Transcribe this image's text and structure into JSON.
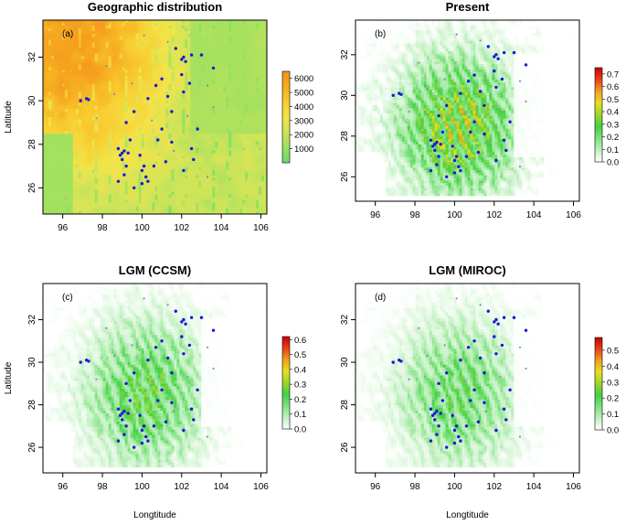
{
  "panels": [
    {
      "title": "Geographic distribution",
      "label": "(a)",
      "kind": "elevation",
      "legend": {
        "min": 0,
        "max": 6500,
        "ticks": [
          "1000",
          "2000",
          "3000",
          "4000",
          "5000",
          "6000"
        ],
        "tick_values": [
          1000,
          2000,
          3000,
          4000,
          5000,
          6000
        ],
        "colors": [
          "#66dd66",
          "#99e060",
          "#cce45a",
          "#f2e44a",
          "#f8cc30",
          "#f6aa20",
          "#f39020"
        ]
      }
    },
    {
      "title": "Present",
      "label": "(b)",
      "kind": "suitability",
      "legend": {
        "min": 0,
        "max": 0.75,
        "ticks": [
          "0.0",
          "0.1",
          "0.2",
          "0.3",
          "0.4",
          "0.5",
          "0.6",
          "0.7"
        ],
        "tick_values": [
          0,
          0.1,
          0.2,
          0.3,
          0.4,
          0.5,
          0.6,
          0.7
        ],
        "colors": [
          "#ffffff",
          "#bff0bf",
          "#7de27d",
          "#44d044",
          "#9ed42c",
          "#e8dd22",
          "#f0a020",
          "#e84018",
          "#cc0000"
        ]
      }
    },
    {
      "title": "LGM (CCSM)",
      "label": "(c)",
      "kind": "suitability",
      "legend": {
        "min": 0,
        "max": 0.62,
        "ticks": [
          "0.0",
          "0.1",
          "0.2",
          "0.3",
          "0.4",
          "0.5",
          "0.6"
        ],
        "tick_values": [
          0,
          0.1,
          0.2,
          0.3,
          0.4,
          0.5,
          0.6
        ],
        "colors": [
          "#ffffff",
          "#bff0bf",
          "#7de27d",
          "#44d044",
          "#9ed42c",
          "#e8dd22",
          "#f0a020",
          "#e84018",
          "#cc0000"
        ]
      }
    },
    {
      "title": "LGM (MIROC)",
      "label": "(d)",
      "kind": "suitability",
      "legend": {
        "min": 0,
        "max": 0.58,
        "ticks": [
          "0.0",
          "0.1",
          "0.2",
          "0.3",
          "0.4",
          "0.5"
        ],
        "tick_values": [
          0,
          0.1,
          0.2,
          0.3,
          0.4,
          0.5
        ],
        "colors": [
          "#ffffff",
          "#bff0bf",
          "#7de27d",
          "#44d044",
          "#9ed42c",
          "#e8dd22",
          "#f0a020",
          "#e84018",
          "#cc0000"
        ]
      }
    }
  ],
  "axes": {
    "xlabel": "Longtitude",
    "ylabel": "Latitude",
    "xlim": [
      95,
      106.3
    ],
    "ylim": [
      24.8,
      33.7
    ],
    "xticks": [
      96,
      98,
      100,
      102,
      104,
      106
    ],
    "yticks": [
      26,
      28,
      30,
      32
    ]
  },
  "occurrence_points": [
    [
      96.9,
      30.0
    ],
    [
      97.2,
      30.1
    ],
    [
      97.3,
      30.05
    ],
    [
      98.8,
      27.8
    ],
    [
      98.9,
      27.5
    ],
    [
      99.0,
      27.6
    ],
    [
      99.1,
      27.7
    ],
    [
      99.3,
      27.6
    ],
    [
      99.0,
      27.3
    ],
    [
      99.2,
      27.0
    ],
    [
      98.8,
      26.3
    ],
    [
      99.1,
      26.6
    ],
    [
      100.0,
      26.8
    ],
    [
      100.1,
      27.0
    ],
    [
      100.2,
      26.5
    ],
    [
      100.0,
      26.2
    ],
    [
      100.3,
      26.3
    ],
    [
      99.9,
      27.5
    ],
    [
      99.4,
      28.2
    ],
    [
      99.2,
      29.0
    ],
    [
      99.6,
      29.5
    ],
    [
      100.3,
      30.1
    ],
    [
      100.7,
      30.7
    ],
    [
      101.0,
      31.0
    ],
    [
      101.3,
      30.2
    ],
    [
      101.5,
      29.5
    ],
    [
      101.0,
      28.7
    ],
    [
      101.2,
      27.2
    ],
    [
      100.6,
      27.0
    ],
    [
      102.0,
      31.9
    ],
    [
      102.1,
      32.0
    ],
    [
      102.2,
      31.8
    ],
    [
      102.5,
      32.1
    ],
    [
      102.0,
      31.2
    ],
    [
      102.4,
      30.8
    ],
    [
      102.1,
      30.4
    ],
    [
      103.0,
      32.1
    ],
    [
      103.6,
      31.5
    ],
    [
      102.8,
      28.7
    ],
    [
      102.5,
      27.8
    ],
    [
      102.6,
      27.3
    ],
    [
      102.1,
      26.8
    ],
    [
      99.6,
      26.0
    ],
    [
      101.7,
      32.4
    ],
    [
      101.5,
      28.1
    ],
    [
      100.8,
      28.2
    ]
  ],
  "faint_points": [
    [
      98.2,
      31.6
    ],
    [
      99.5,
      30.8
    ],
    [
      101.3,
      32.7
    ],
    [
      102.3,
      29.3
    ],
    [
      103.3,
      30.7
    ],
    [
      103.6,
      29.7
    ],
    [
      98.6,
      30.3
    ],
    [
      100.1,
      33.0
    ],
    [
      101.6,
      27.7
    ],
    [
      103.3,
      26.5
    ],
    [
      97.7,
      29.2
    ],
    [
      100.5,
      29.1
    ]
  ],
  "colors": {
    "point": "#1a1ad8",
    "faint_point": "#8888bb",
    "frame": "#000000",
    "sea": "#ffffff"
  }
}
